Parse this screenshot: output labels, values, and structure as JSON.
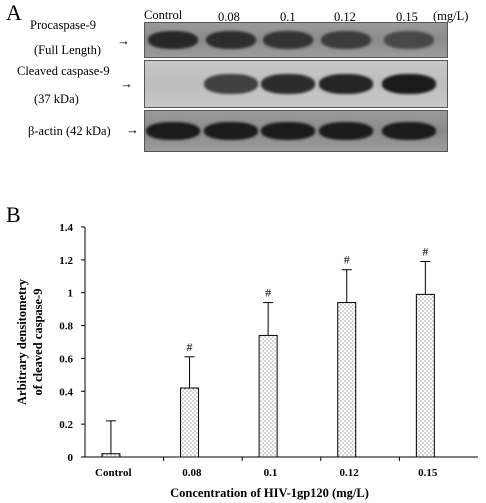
{
  "panel_a": {
    "letter": "A",
    "unit": "(mg/L)",
    "lanes": [
      "Control",
      "0.08",
      "0.1",
      "0.12",
      "0.15"
    ],
    "rows": {
      "procaspase": {
        "line1": "Procaspase-9",
        "line2": "(Full Length)",
        "arrow": "→"
      },
      "cleaved": {
        "line1": "Cleaved caspase-9",
        "line2": "(37 kDa)",
        "arrow": "→"
      },
      "actin": {
        "line1": "β-actin (42 kDa)",
        "arrow": "→"
      }
    },
    "band_intensity": {
      "procaspase": [
        0.8,
        0.75,
        0.7,
        0.62,
        0.5
      ],
      "cleaved": [
        0.0,
        0.65,
        0.8,
        0.85,
        0.92
      ],
      "actin": [
        0.9,
        0.9,
        0.9,
        0.9,
        0.9
      ]
    }
  },
  "panel_b": {
    "letter": "B"
  },
  "chart_data": {
    "type": "bar",
    "categories": [
      "Control",
      "0.08",
      "0.1",
      "0.12",
      "0.15"
    ],
    "values": [
      0.02,
      0.42,
      0.74,
      0.94,
      0.99
    ],
    "errors": [
      0.2,
      0.19,
      0.2,
      0.2,
      0.2
    ],
    "annotations": [
      "",
      "#",
      "#",
      "#",
      "#"
    ],
    "xlabel": "Concentration of HIV-1gp120 (mg/L)",
    "ylabel_line1": "Arbitrary densitometry",
    "ylabel_line2": "of cleaved caspase-9",
    "ylim": [
      0,
      1.4
    ],
    "yticks": [
      "0",
      "0.2",
      "0.4",
      "0.6",
      "0.8",
      "1",
      "1.2",
      "1.4"
    ],
    "grid": false,
    "bar_fill": "dotted"
  }
}
